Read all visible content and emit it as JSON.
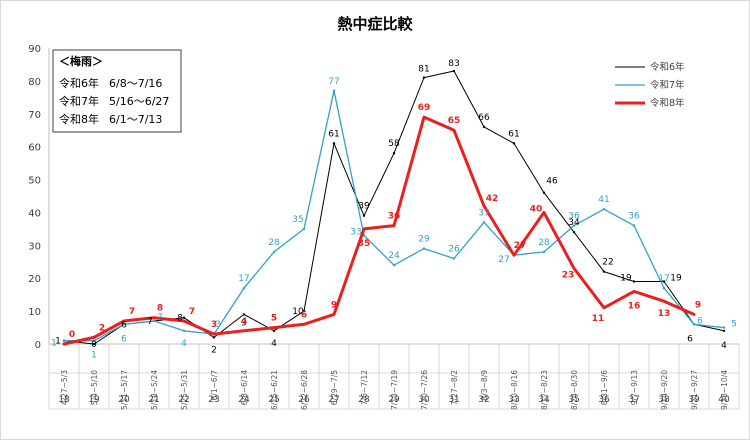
{
  "chart_data": {
    "type": "line",
    "title": "熱中症比較",
    "xlabel": "",
    "ylabel": "",
    "ylim": [
      0,
      90
    ],
    "yticks": [
      0,
      10,
      20,
      30,
      40,
      50,
      60,
      70,
      80,
      90
    ],
    "grid": false,
    "legend": "top-right",
    "categories": [
      "4/27~5/3",
      "5/4~5/10",
      "5/11~5/17",
      "5/18~5/24",
      "5/25~5/31",
      "6/1~6/7",
      "6/8~6/14",
      "6/15~6/21",
      "6/22~6/28",
      "6/29~7/5",
      "7/6~7/12",
      "7/13~7/19",
      "7/20~7/26",
      "7/27~8/2",
      "8/3~8/9",
      "8/10~8/16",
      "8/17~8/23",
      "8/24~8/30",
      "8/31~9/6",
      "9/7~9/13",
      "9/14~9/20",
      "9/21~9/27",
      "9/28~10/4"
    ],
    "weeks": [
      "18",
      "19",
      "20",
      "21",
      "22",
      "23",
      "24",
      "25",
      "26",
      "27",
      "28",
      "29",
      "30",
      "31",
      "32",
      "33",
      "34",
      "35",
      "36",
      "37",
      "38",
      "39",
      "40"
    ],
    "series": [
      {
        "name": "令和6年",
        "color": "#000000",
        "values": [
          1,
          0,
          6,
          7,
          8,
          2,
          9,
          4,
          10,
          61,
          39,
          58,
          81,
          83,
          66,
          61,
          46,
          34,
          22,
          19,
          19,
          6,
          4
        ]
      },
      {
        "name": "令和7年",
        "color": "#31a3c6",
        "values": [
          1,
          1,
          6,
          7,
          4,
          3,
          17,
          28,
          35,
          77,
          33,
          24,
          29,
          26,
          37,
          27,
          28,
          36,
          41,
          36,
          17,
          6,
          5
        ]
      },
      {
        "name": "令和8年",
        "color": "#e8201e",
        "values": [
          0,
          2,
          7,
          8,
          7,
          3,
          4,
          5,
          6,
          9,
          35,
          36,
          69,
          65,
          42,
          27,
          40,
          23,
          11,
          16,
          13,
          9,
          null
        ]
      }
    ]
  },
  "rainy_season": {
    "heading": "＜梅雨＞",
    "rows": [
      {
        "year": "令和6年",
        "period": "6/8～7/16"
      },
      {
        "year": "令和7年",
        "period": "5/16～6/27"
      },
      {
        "year": "令和8年",
        "period": "6/1～7/13"
      }
    ]
  }
}
